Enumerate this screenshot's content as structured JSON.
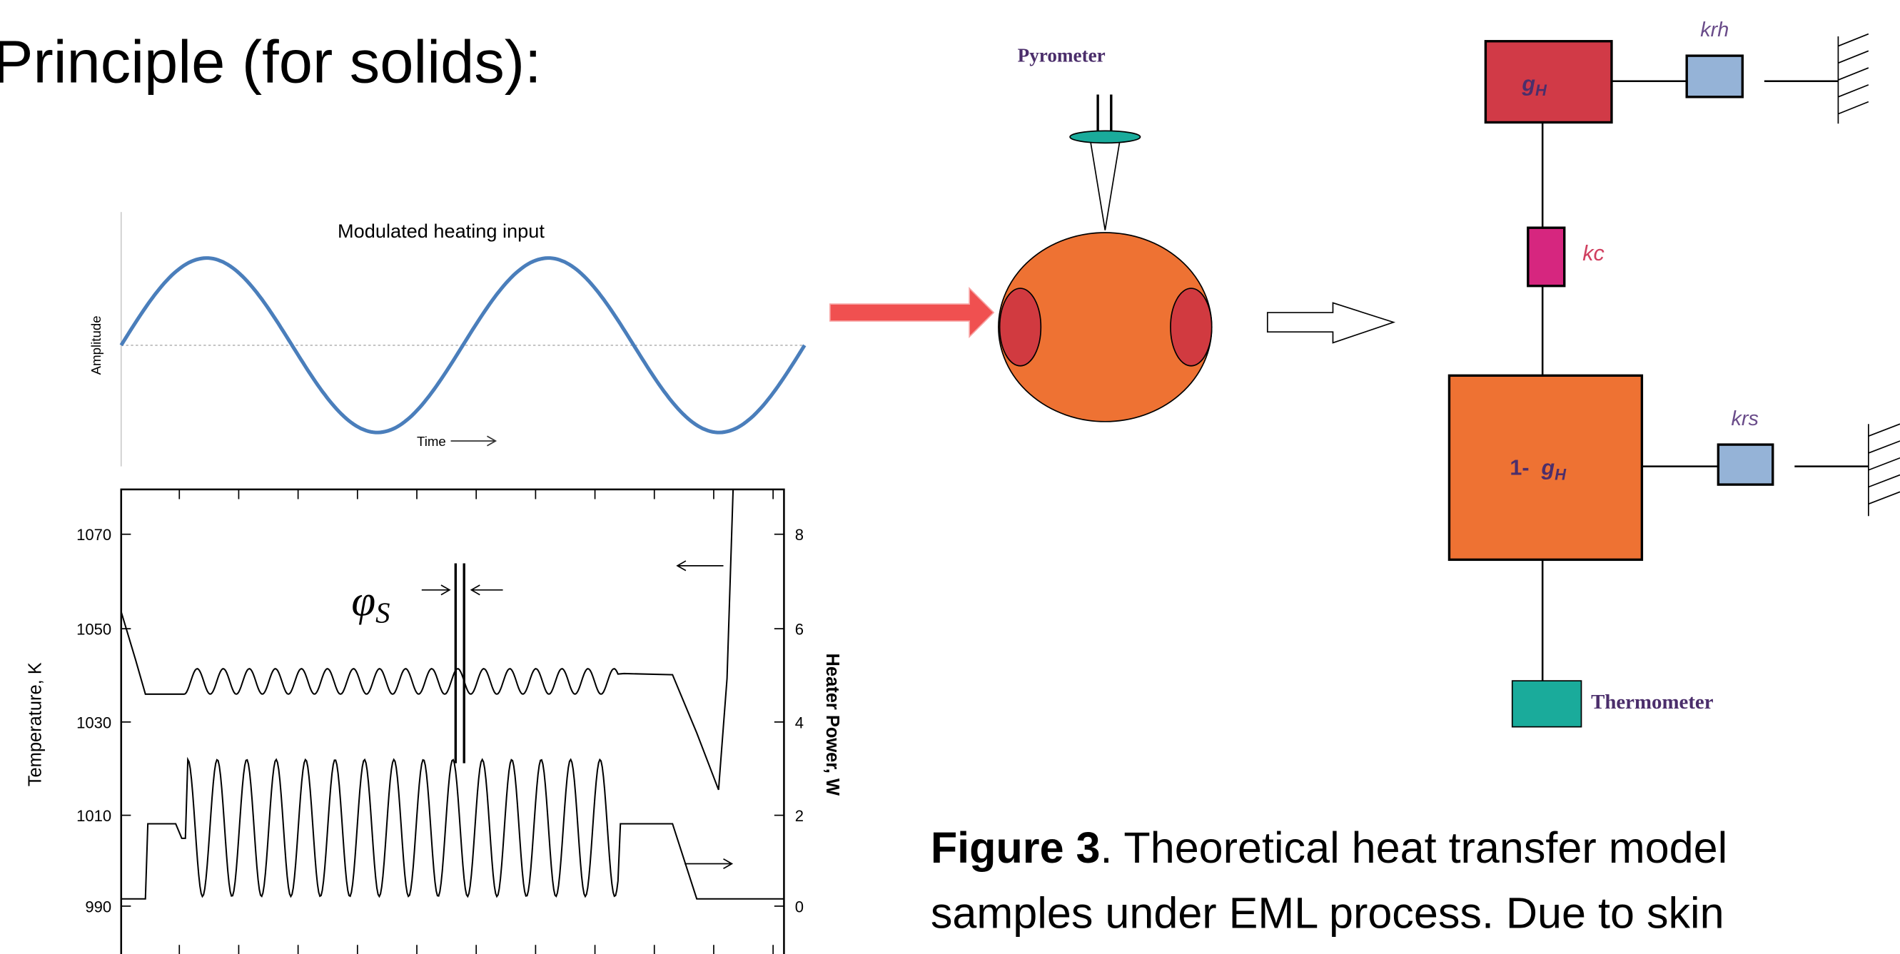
{
  "heading": "Principle (for solids):",
  "sine_panel": {
    "title": "Modulated heating input",
    "y_label": "Amplitude",
    "x_label": "Time"
  },
  "plot": {
    "y_label": "Temperature, K",
    "y2_label": "Heater Power, W",
    "y_ticks": [
      "1070",
      "1050",
      "1030",
      "1010",
      "990"
    ],
    "y2_ticks": [
      "8",
      "6",
      "4",
      "2",
      "0"
    ],
    "phase_symbol": "φ",
    "phase_subscript": "S"
  },
  "diagram": {
    "pyrometer": "Pyrometer",
    "g": "g",
    "g_sub": "H",
    "krh": "krh",
    "kc": "kc",
    "krs": "krs",
    "one_minus": "1-",
    "thermometer": "Thermometer"
  },
  "caption": {
    "bold": "Figure 3",
    "line1": ". Theoretical heat transfer model",
    "line2": "samples under EML process.  Due to skin"
  }
}
